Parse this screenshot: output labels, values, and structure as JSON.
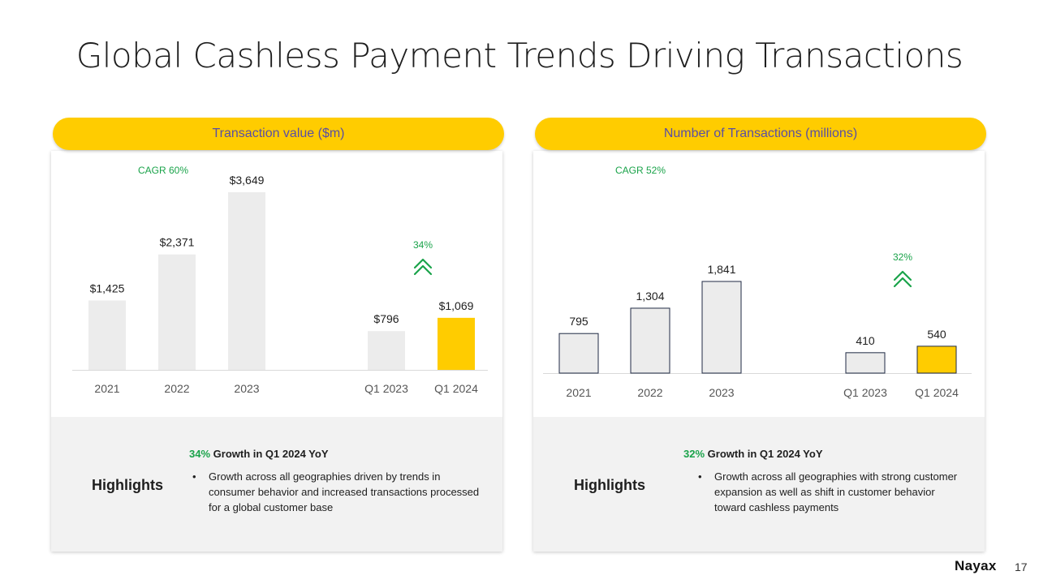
{
  "title": "Global Cashless Payment Trends Driving Transactions",
  "colors": {
    "accent": "#ffcc00",
    "bar": "#ececec",
    "growth": "#1aa34a",
    "header_text": "#5a4fa3"
  },
  "chart_data": [
    {
      "type": "bar",
      "title": "Transaction value ($m)",
      "categories": [
        "2021",
        "2022",
        "2023",
        "Q1 2023",
        "Q1 2024"
      ],
      "values": [
        1425,
        2371,
        3649,
        796,
        1069
      ],
      "value_labels": [
        "$1,425",
        "$2,371",
        "$3,649",
        "$796",
        "$1,069"
      ],
      "highlight_index": 4,
      "ylim": [
        0,
        3649
      ],
      "cagr_label": "CAGR 60%",
      "growth_label": "34%",
      "grid": false
    },
    {
      "type": "bar",
      "title": "Number of Transactions (millions)",
      "categories": [
        "2021",
        "2022",
        "2023",
        "Q1 2023",
        "Q1 2024"
      ],
      "values": [
        795,
        1304,
        1841,
        410,
        540
      ],
      "value_labels": [
        "795",
        "1,304",
        "1,841",
        "410",
        "540"
      ],
      "highlight_index": 4,
      "ylim": [
        0,
        1841
      ],
      "cagr_label": "CAGR 52%",
      "growth_label": "32%",
      "grid": false
    }
  ],
  "highlights": [
    {
      "label": "Highlights",
      "pct": "34%",
      "headline": "Growth in Q1 2024 YoY",
      "bullet": "Growth  across all geographies driven by trends in consumer behavior and increased transactions processed for a global customer base"
    },
    {
      "label": "Highlights",
      "pct": "32%",
      "headline": "Growth in Q1 2024 YoY",
      "bullet": "Growth  across all geographies with strong customer expansion as well as shift in customer behavior toward cashless payments"
    }
  ],
  "footer": {
    "logo_main": "Nayax",
    "page_number": "17"
  }
}
